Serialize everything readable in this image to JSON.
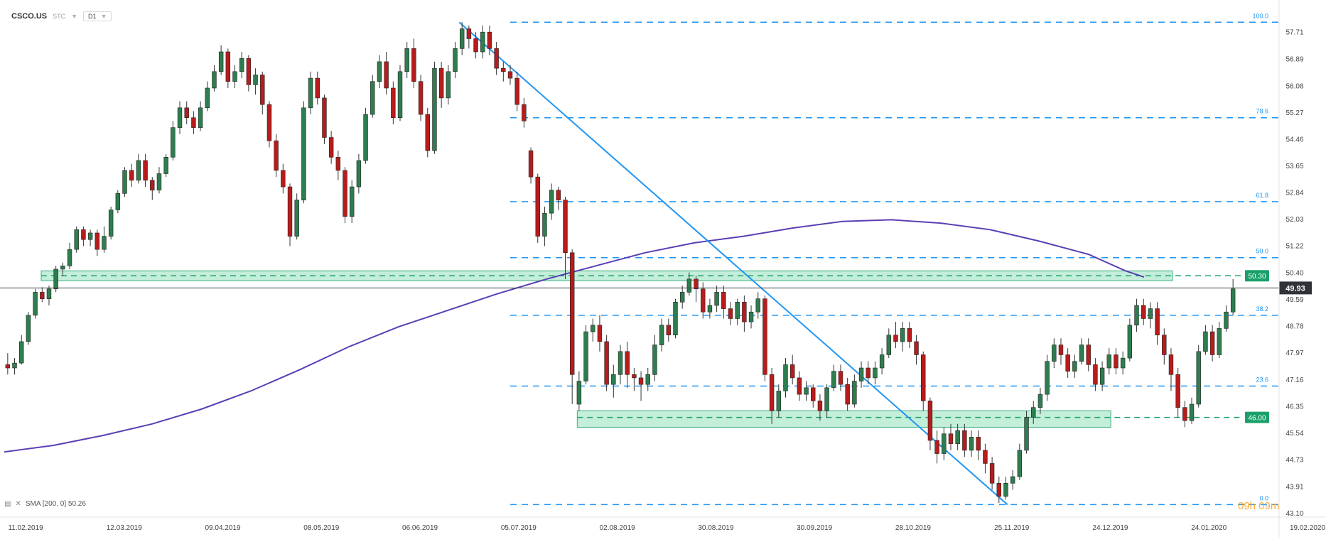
{
  "header": {
    "symbol": "CSCO.US",
    "type": "STC",
    "timeframe": "D1"
  },
  "indicator": {
    "label": "SMA [200, 0] 50.26"
  },
  "timer": "09h 09m",
  "colors": {
    "bull": "#2e7d4f",
    "bear": "#b71c1c",
    "sma": "#5b3fb5",
    "fib": "#2196f3",
    "zone_fill": "#b9ecd3",
    "zone_line": "#1aa06a",
    "zone_label": "#1aa06a",
    "price_line": "#3c4043"
  },
  "chart_data": {
    "type": "candlestick",
    "title": "",
    "ylim": [
      43.1,
      58.2
    ],
    "y_ticks": [
      "57.71",
      "56.89",
      "56.08",
      "55.27",
      "54.46",
      "53.65",
      "52.84",
      "52.03",
      "51.22",
      "50.40",
      "49.59",
      "48.78",
      "47.97",
      "47.16",
      "46.35",
      "45.54",
      "44.73",
      "43.91",
      "43.10"
    ],
    "x_ticks": [
      "11.02.2019",
      "12.03.2019",
      "09.04.2019",
      "08.05.2019",
      "06.06.2019",
      "05.07.2019",
      "02.08.2019",
      "30.08.2019",
      "30.09.2019",
      "28.10.2019",
      "25.11.2019",
      "24.12.2019",
      "24.01.2020",
      "19.02.2020"
    ],
    "last_price": "49.93",
    "fib_levels": [
      {
        "label": "100.0",
        "value": 58.0
      },
      {
        "label": "78.6",
        "value": 55.1
      },
      {
        "label": "61.8",
        "value": 52.55
      },
      {
        "label": "50.0",
        "value": 50.85
      },
      {
        "label": "38.2",
        "value": 49.1
      },
      {
        "label": "23.6",
        "value": 46.95
      },
      {
        "label": "0.0",
        "value": 43.35
      }
    ],
    "zones": [
      {
        "label": "50.30",
        "value": 50.3,
        "low": 50.15,
        "high": 50.45
      },
      {
        "label": "46.00",
        "value": 46.0,
        "low": 45.7,
        "high": 46.2
      }
    ],
    "trendline": {
      "from": [
        "05.07.2019",
        58.0
      ],
      "to": [
        "25.11.2019",
        43.35
      ]
    },
    "sma200": [
      [
        0,
        44.95
      ],
      [
        0.04,
        45.15
      ],
      [
        0.08,
        45.45
      ],
      [
        0.12,
        45.8
      ],
      [
        0.16,
        46.25
      ],
      [
        0.2,
        46.8
      ],
      [
        0.24,
        47.45
      ],
      [
        0.28,
        48.15
      ],
      [
        0.32,
        48.75
      ],
      [
        0.36,
        49.25
      ],
      [
        0.4,
        49.75
      ],
      [
        0.44,
        50.2
      ],
      [
        0.48,
        50.6
      ],
      [
        0.52,
        51.0
      ],
      [
        0.56,
        51.3
      ],
      [
        0.6,
        51.5
      ],
      [
        0.64,
        51.75
      ],
      [
        0.68,
        51.95
      ],
      [
        0.72,
        52.0
      ],
      [
        0.76,
        51.9
      ],
      [
        0.8,
        51.7
      ],
      [
        0.84,
        51.35
      ],
      [
        0.88,
        50.95
      ],
      [
        0.91,
        50.45
      ],
      [
        0.925,
        50.26
      ]
    ],
    "candles": [
      [
        47.6,
        47.5,
        47.95,
        47.3
      ],
      [
        47.5,
        47.65,
        47.8,
        47.3
      ],
      [
        47.65,
        48.3,
        48.5,
        47.6
      ],
      [
        48.3,
        49.1,
        49.2,
        48.2
      ],
      [
        49.1,
        49.8,
        49.9,
        49.0
      ],
      [
        49.8,
        49.6,
        49.95,
        49.5
      ],
      [
        49.6,
        49.9,
        50.0,
        49.4
      ],
      [
        49.9,
        50.5,
        50.6,
        49.8
      ],
      [
        50.5,
        50.6,
        50.7,
        50.3
      ],
      [
        50.6,
        51.1,
        51.3,
        50.5
      ],
      [
        51.1,
        51.7,
        51.8,
        51.0
      ],
      [
        51.7,
        51.4,
        51.8,
        51.2
      ],
      [
        51.4,
        51.6,
        51.7,
        51.2
      ],
      [
        51.6,
        51.1,
        51.7,
        50.9
      ],
      [
        51.1,
        51.5,
        51.8,
        51.0
      ],
      [
        51.5,
        52.3,
        52.4,
        51.4
      ],
      [
        52.3,
        52.8,
        52.9,
        52.2
      ],
      [
        52.8,
        53.5,
        53.6,
        52.7
      ],
      [
        53.5,
        53.2,
        53.7,
        53.0
      ],
      [
        53.2,
        53.8,
        54.0,
        53.1
      ],
      [
        53.8,
        53.2,
        54.0,
        53.0
      ],
      [
        53.2,
        52.9,
        53.3,
        52.6
      ],
      [
        52.9,
        53.4,
        53.6,
        52.8
      ],
      [
        53.4,
        53.9,
        54.0,
        53.3
      ],
      [
        53.9,
        54.8,
        55.0,
        53.8
      ],
      [
        54.8,
        55.4,
        55.6,
        54.6
      ],
      [
        55.4,
        55.1,
        55.6,
        54.9
      ],
      [
        55.1,
        54.8,
        55.3,
        54.6
      ],
      [
        54.8,
        55.4,
        55.6,
        54.7
      ],
      [
        55.4,
        56.0,
        56.2,
        55.3
      ],
      [
        56.0,
        56.5,
        56.7,
        55.9
      ],
      [
        56.5,
        57.1,
        57.3,
        56.4
      ],
      [
        57.1,
        56.2,
        57.2,
        56.0
      ],
      [
        56.2,
        56.5,
        56.7,
        56.0
      ],
      [
        56.5,
        56.9,
        57.1,
        56.3
      ],
      [
        56.9,
        56.1,
        57.0,
        55.9
      ],
      [
        56.1,
        56.4,
        56.6,
        55.8
      ],
      [
        56.4,
        55.5,
        56.5,
        55.2
      ],
      [
        55.5,
        54.4,
        55.6,
        54.2
      ],
      [
        54.4,
        53.5,
        54.6,
        53.3
      ],
      [
        53.5,
        53.0,
        53.7,
        52.8
      ],
      [
        53.0,
        51.5,
        53.1,
        51.2
      ],
      [
        51.5,
        52.6,
        52.8,
        51.4
      ],
      [
        52.6,
        55.4,
        55.6,
        52.5
      ],
      [
        55.4,
        56.3,
        56.5,
        55.2
      ],
      [
        56.3,
        55.7,
        56.5,
        55.5
      ],
      [
        55.7,
        54.5,
        55.8,
        54.3
      ],
      [
        54.5,
        53.9,
        54.7,
        53.7
      ],
      [
        53.9,
        53.5,
        54.1,
        53.2
      ],
      [
        53.5,
        52.1,
        53.6,
        51.9
      ],
      [
        52.1,
        53.0,
        53.2,
        51.9
      ],
      [
        53.0,
        53.8,
        54.0,
        52.8
      ],
      [
        53.8,
        55.2,
        55.4,
        53.7
      ],
      [
        55.2,
        56.2,
        56.4,
        55.1
      ],
      [
        56.2,
        56.8,
        57.0,
        56.0
      ],
      [
        56.8,
        56.0,
        57.1,
        55.8
      ],
      [
        56.0,
        55.1,
        56.2,
        54.9
      ],
      [
        55.1,
        56.5,
        56.7,
        55.0
      ],
      [
        56.5,
        57.2,
        57.4,
        56.3
      ],
      [
        57.2,
        56.2,
        57.5,
        56.0
      ],
      [
        56.2,
        55.2,
        56.4,
        55.0
      ],
      [
        55.2,
        54.1,
        55.4,
        53.9
      ],
      [
        54.1,
        56.6,
        56.8,
        54.0
      ],
      [
        56.6,
        55.7,
        56.8,
        55.4
      ],
      [
        55.7,
        56.5,
        56.7,
        55.5
      ],
      [
        56.5,
        57.2,
        57.4,
        56.3
      ],
      [
        57.2,
        57.8,
        58.0,
        57.0
      ],
      [
        57.8,
        57.5,
        57.9,
        57.2
      ],
      [
        57.5,
        57.1,
        57.7,
        56.9
      ],
      [
        57.1,
        57.7,
        57.9,
        56.9
      ],
      [
        57.7,
        57.2,
        57.9,
        57.0
      ],
      [
        57.2,
        56.6,
        57.4,
        56.4
      ],
      [
        56.6,
        56.5,
        56.8,
        56.2
      ],
      [
        56.5,
        56.3,
        56.7,
        56.1
      ],
      [
        56.3,
        55.5,
        56.5,
        55.3
      ],
      [
        55.5,
        55.0,
        55.7,
        54.8
      ],
      [
        54.1,
        53.3,
        54.2,
        53.1
      ],
      [
        53.3,
        51.5,
        53.4,
        51.3
      ],
      [
        51.5,
        52.2,
        52.4,
        51.2
      ],
      [
        52.2,
        52.9,
        53.1,
        52.0
      ],
      [
        52.9,
        52.6,
        53.0,
        52.3
      ],
      [
        52.6,
        51.0,
        52.7,
        50.2
      ],
      [
        51.0,
        47.3,
        51.1,
        46.4
      ],
      [
        46.4,
        47.1,
        47.4,
        46.2
      ],
      [
        47.1,
        48.6,
        48.8,
        47.0
      ],
      [
        48.6,
        48.8,
        49.0,
        48.3
      ],
      [
        48.8,
        48.3,
        49.1,
        48.0
      ],
      [
        48.3,
        47.0,
        48.5,
        46.8
      ],
      [
        47.0,
        47.3,
        47.6,
        46.6
      ],
      [
        47.3,
        48.0,
        48.2,
        47.0
      ],
      [
        48.0,
        47.3,
        48.3,
        46.9
      ],
      [
        47.3,
        47.2,
        47.5,
        46.8
      ],
      [
        47.2,
        47.0,
        47.4,
        46.5
      ],
      [
        47.0,
        47.3,
        47.5,
        46.8
      ],
      [
        47.3,
        48.2,
        48.5,
        47.1
      ],
      [
        48.2,
        48.8,
        49.0,
        48.0
      ],
      [
        48.8,
        48.5,
        49.0,
        48.3
      ],
      [
        48.5,
        49.5,
        49.6,
        48.4
      ],
      [
        49.5,
        49.8,
        50.0,
        49.3
      ],
      [
        49.8,
        50.2,
        50.4,
        49.7
      ],
      [
        50.2,
        49.9,
        50.3,
        49.5
      ],
      [
        49.9,
        49.2,
        50.1,
        49.0
      ],
      [
        49.2,
        49.4,
        49.6,
        49.0
      ],
      [
        49.4,
        49.8,
        50.0,
        49.2
      ],
      [
        49.8,
        49.3,
        50.0,
        49.0
      ],
      [
        49.3,
        49.0,
        49.5,
        48.8
      ],
      [
        49.0,
        49.5,
        49.6,
        48.8
      ],
      [
        49.5,
        48.9,
        49.7,
        48.6
      ],
      [
        48.9,
        49.2,
        49.4,
        48.7
      ],
      [
        49.2,
        49.6,
        49.8,
        49.0
      ],
      [
        49.6,
        47.3,
        49.7,
        47.1
      ],
      [
        47.3,
        46.2,
        47.5,
        45.8
      ],
      [
        46.2,
        46.8,
        47.0,
        46.0
      ],
      [
        46.8,
        47.6,
        47.8,
        46.6
      ],
      [
        47.6,
        47.2,
        47.9,
        47.0
      ],
      [
        47.2,
        46.7,
        47.4,
        46.5
      ],
      [
        46.7,
        46.9,
        47.1,
        46.5
      ],
      [
        46.9,
        46.5,
        47.0,
        46.3
      ],
      [
        46.5,
        46.2,
        46.7,
        45.9
      ],
      [
        46.2,
        46.9,
        47.0,
        46.0
      ],
      [
        46.9,
        47.4,
        47.6,
        46.8
      ],
      [
        47.4,
        47.0,
        47.6,
        46.8
      ],
      [
        47.0,
        46.4,
        47.2,
        46.2
      ],
      [
        46.4,
        47.1,
        47.3,
        46.3
      ],
      [
        47.1,
        47.5,
        47.7,
        46.9
      ],
      [
        47.5,
        47.2,
        47.7,
        47.0
      ],
      [
        47.2,
        47.5,
        47.7,
        47.0
      ],
      [
        47.5,
        47.9,
        48.1,
        47.3
      ],
      [
        47.9,
        48.5,
        48.7,
        47.8
      ],
      [
        48.5,
        48.3,
        48.9,
        48.1
      ],
      [
        48.3,
        48.7,
        48.9,
        48.0
      ],
      [
        48.7,
        48.3,
        48.9,
        48.1
      ],
      [
        48.3,
        47.9,
        48.5,
        47.6
      ],
      [
        47.9,
        46.5,
        48.0,
        46.2
      ],
      [
        46.5,
        45.3,
        46.6,
        45.0
      ],
      [
        45.3,
        44.9,
        45.6,
        44.6
      ],
      [
        44.9,
        45.5,
        45.7,
        44.7
      ],
      [
        45.5,
        45.2,
        45.8,
        45.0
      ],
      [
        45.2,
        45.6,
        45.8,
        45.0
      ],
      [
        45.6,
        45.0,
        45.8,
        44.8
      ],
      [
        45.0,
        45.4,
        45.6,
        44.8
      ],
      [
        45.4,
        45.0,
        45.6,
        44.7
      ],
      [
        45.0,
        44.6,
        45.2,
        44.3
      ],
      [
        44.6,
        44.0,
        44.8,
        43.8
      ],
      [
        44.0,
        43.6,
        44.2,
        43.4
      ],
      [
        43.6,
        44.0,
        44.2,
        43.5
      ],
      [
        44.0,
        44.2,
        44.4,
        43.8
      ],
      [
        44.2,
        45.0,
        45.2,
        44.1
      ],
      [
        45.0,
        46.0,
        46.2,
        44.9
      ],
      [
        46.0,
        46.3,
        46.5,
        45.8
      ],
      [
        46.3,
        46.7,
        46.9,
        46.1
      ],
      [
        46.7,
        47.7,
        47.9,
        46.5
      ],
      [
        47.7,
        48.2,
        48.4,
        47.5
      ],
      [
        48.2,
        47.9,
        48.4,
        47.6
      ],
      [
        47.9,
        47.4,
        48.1,
        47.2
      ],
      [
        47.4,
        47.7,
        47.9,
        47.2
      ],
      [
        47.7,
        48.2,
        48.4,
        47.6
      ],
      [
        48.2,
        47.6,
        48.4,
        47.4
      ],
      [
        47.6,
        47.0,
        47.8,
        46.8
      ],
      [
        47.0,
        47.5,
        47.7,
        46.8
      ],
      [
        47.5,
        47.9,
        48.1,
        47.3
      ],
      [
        47.9,
        47.5,
        48.1,
        47.3
      ],
      [
        47.5,
        47.8,
        48.0,
        47.3
      ],
      [
        47.8,
        48.8,
        49.0,
        47.7
      ],
      [
        48.8,
        49.4,
        49.6,
        48.6
      ],
      [
        49.4,
        49.0,
        49.6,
        48.8
      ],
      [
        49.0,
        49.3,
        49.5,
        48.7
      ],
      [
        49.3,
        48.5,
        49.5,
        48.2
      ],
      [
        48.5,
        47.9,
        48.7,
        47.6
      ],
      [
        47.9,
        47.3,
        48.1,
        46.8
      ],
      [
        47.3,
        46.3,
        47.5,
        46.0
      ],
      [
        46.3,
        45.9,
        46.5,
        45.7
      ],
      [
        45.9,
        46.4,
        46.6,
        45.8
      ],
      [
        46.4,
        48.0,
        48.2,
        46.3
      ],
      [
        48.0,
        48.6,
        48.8,
        47.9
      ],
      [
        48.6,
        47.9,
        48.8,
        47.7
      ],
      [
        47.9,
        48.7,
        48.9,
        47.8
      ],
      [
        48.7,
        49.2,
        49.4,
        48.6
      ],
      [
        49.2,
        49.9,
        50.2,
        49.1
      ]
    ]
  }
}
